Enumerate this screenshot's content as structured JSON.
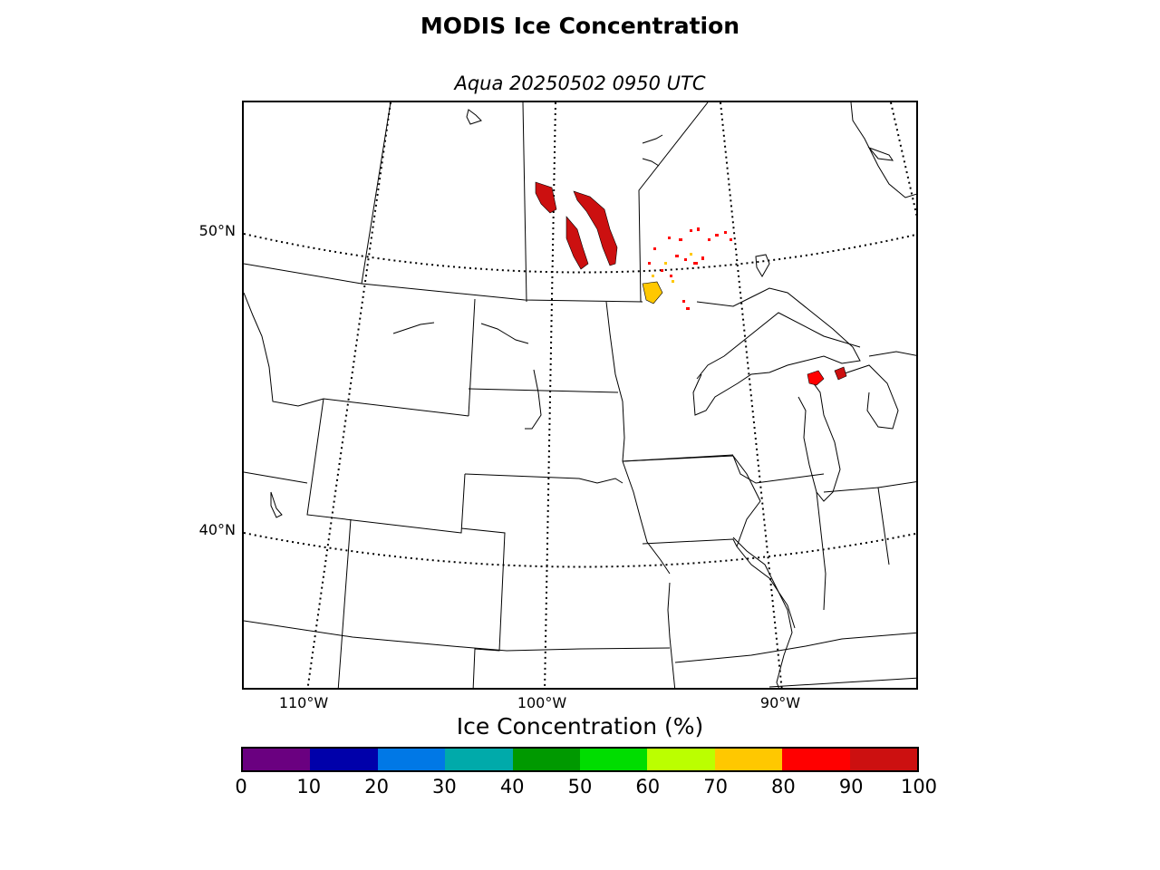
{
  "title": "MODIS Ice Concentration",
  "subtitle": "Aqua 20250502 0950 UTC",
  "lat_labels": [
    "50°N",
    "40°N"
  ],
  "lon_labels": [
    "110°W",
    "100°W",
    "90°W"
  ],
  "colorbar": {
    "title": "Ice Concentration (%)",
    "ticks": [
      "0",
      "10",
      "20",
      "30",
      "40",
      "50",
      "60",
      "70",
      "80",
      "90",
      "100"
    ],
    "colors": [
      "#6a0080",
      "#0000aa",
      "#0078e6",
      "#00aaaa",
      "#009900",
      "#00dd00",
      "#bbff00",
      "#ffc800",
      "#ff0000",
      "#cc1010"
    ]
  }
}
